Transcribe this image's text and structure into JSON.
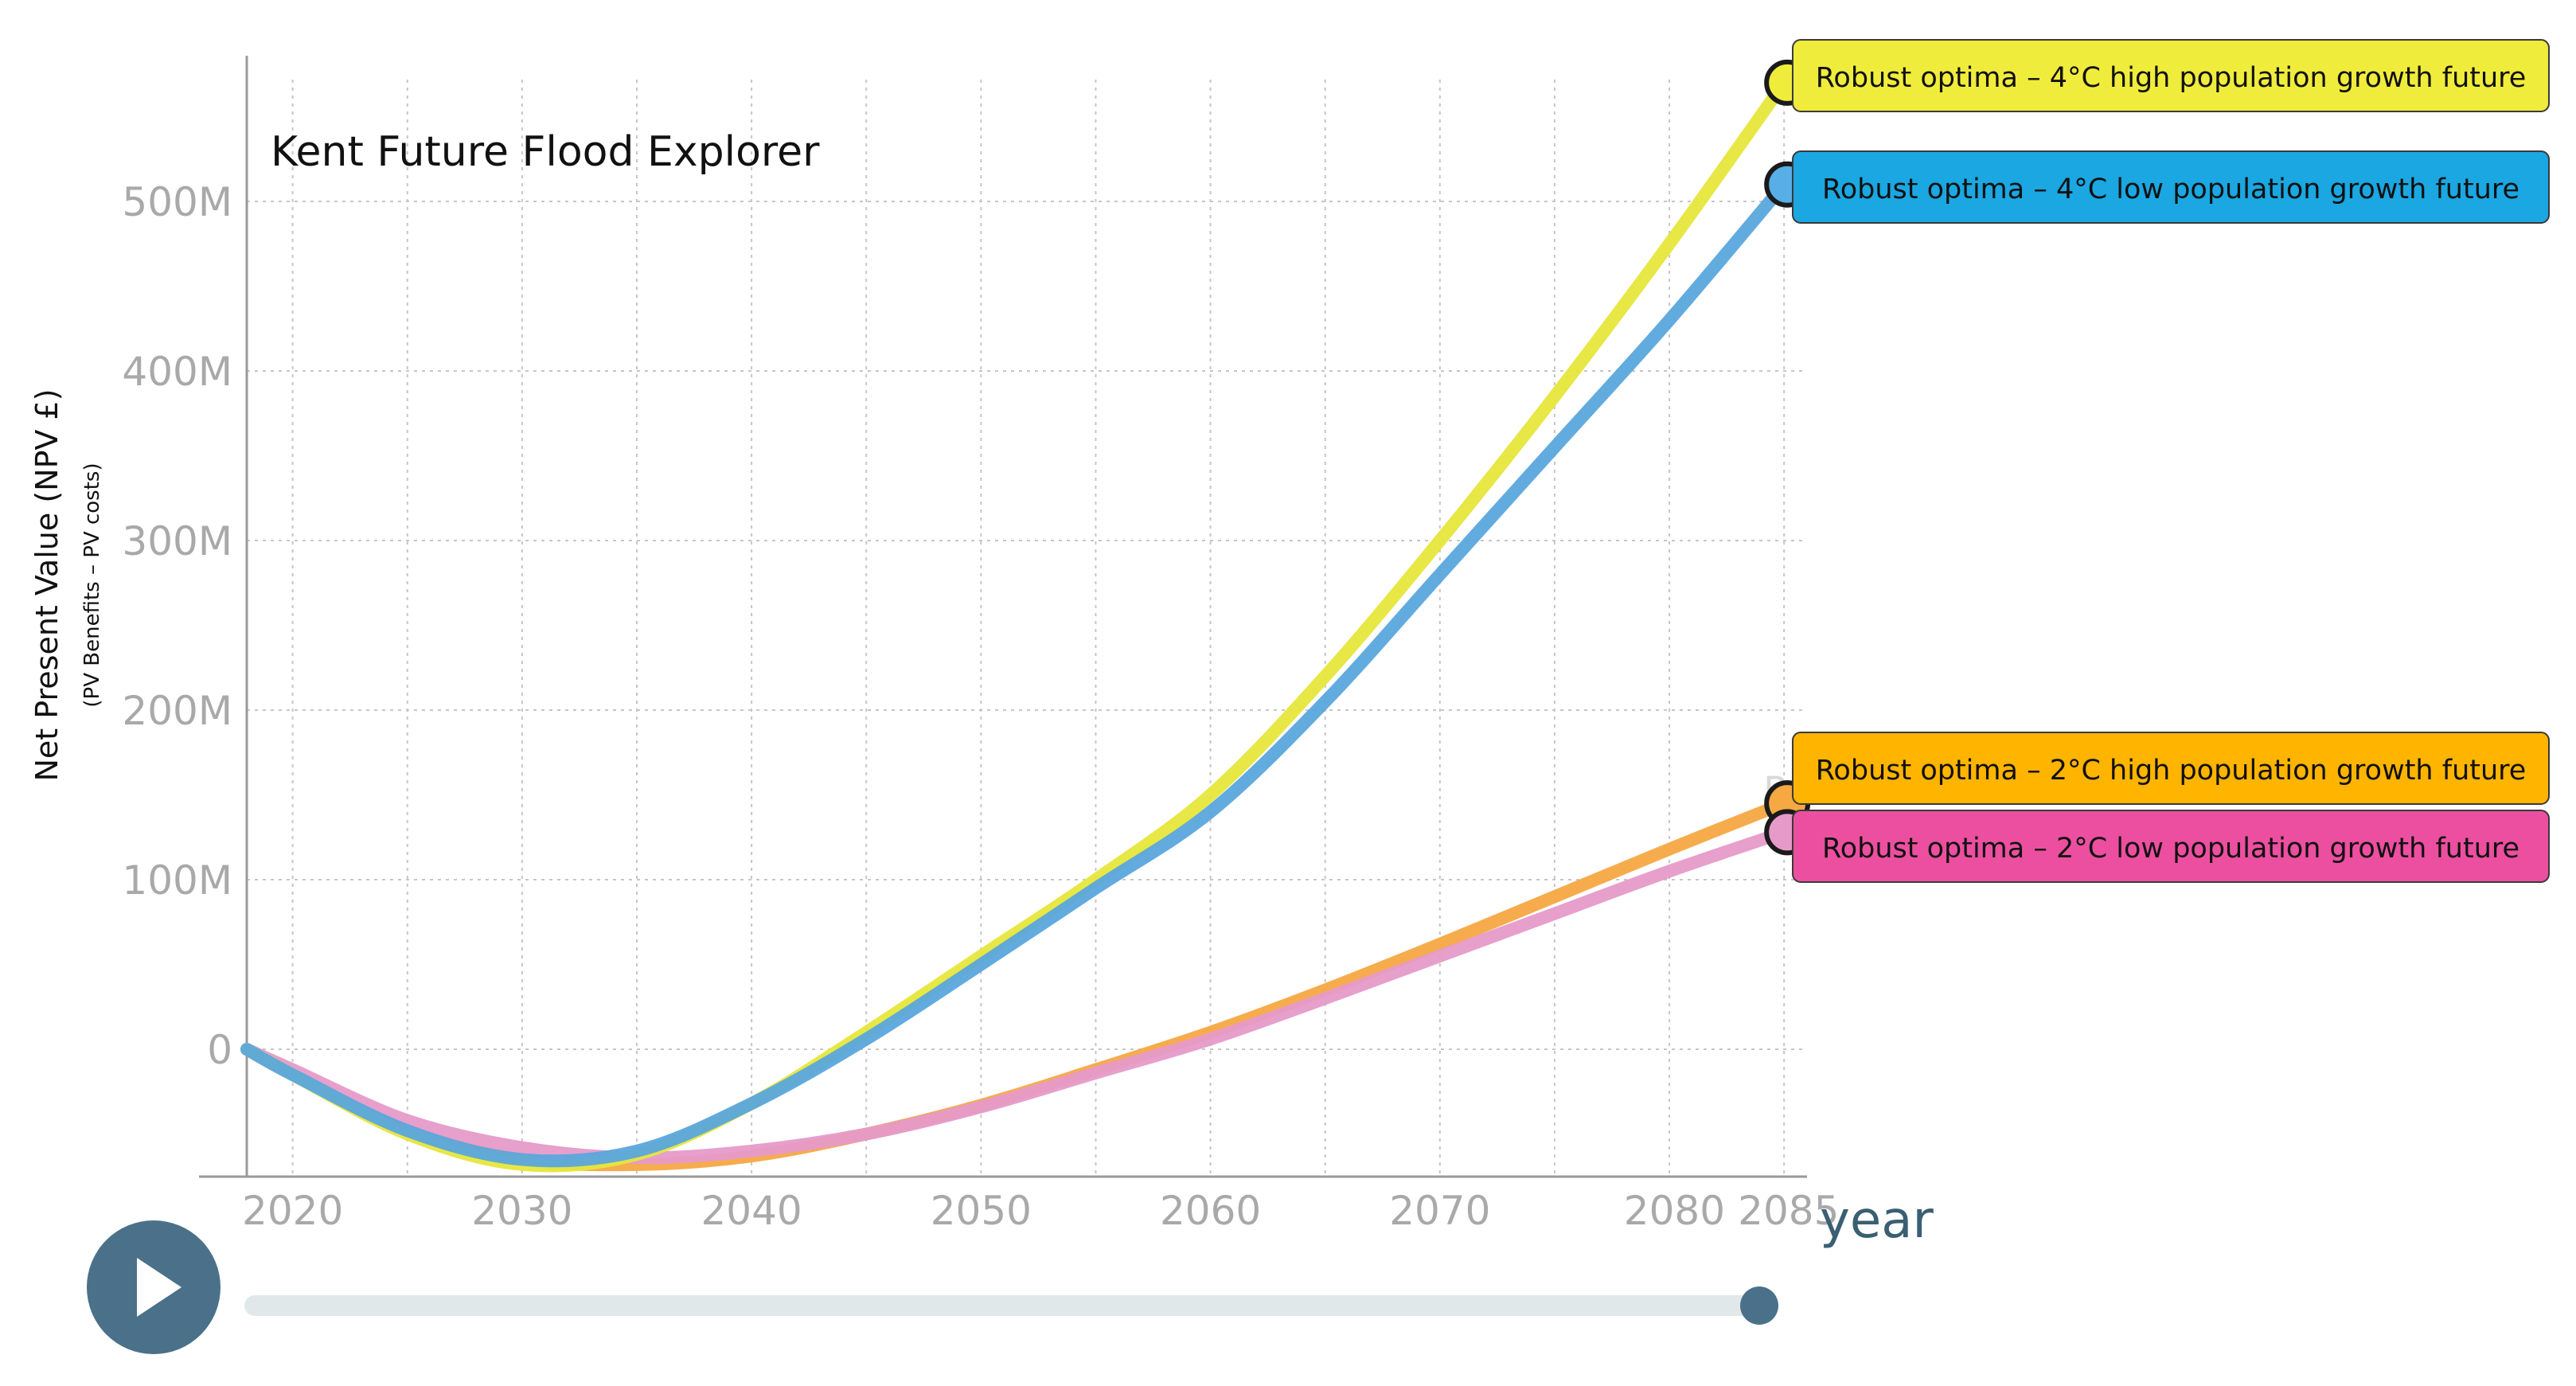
{
  "chart_data": {
    "type": "line",
    "title": "Kent Future Flood Explorer",
    "ylabel": "Net Present Value (NPV £)",
    "ylabel_sub": "(PV Benefits – PV costs)",
    "xlabel": "year",
    "xlim": [
      2018,
      2086
    ],
    "ylim": [
      -78,
      590
    ],
    "x_ticks": [
      {
        "value": 2020,
        "label": "2020"
      },
      {
        "value": 2030,
        "label": "2030"
      },
      {
        "value": 2040,
        "label": "2040"
      },
      {
        "value": 2050,
        "label": "2050"
      },
      {
        "value": 2060,
        "label": "2060"
      },
      {
        "value": 2070,
        "label": "2070"
      },
      {
        "value": 2080,
        "label": "2080"
      },
      {
        "value": 2085,
        "label": "2085"
      }
    ],
    "y_ticks": [
      {
        "value": 0,
        "label": "0"
      },
      {
        "value": 100,
        "label": "100M"
      },
      {
        "value": 200,
        "label": "200M"
      },
      {
        "value": 300,
        "label": "300M"
      },
      {
        "value": 400,
        "label": "400M"
      },
      {
        "value": 500,
        "label": "500M"
      }
    ],
    "x_grid": [
      2018,
      2020,
      2025,
      2030,
      2035,
      2040,
      2045,
      2050,
      2055,
      2060,
      2065,
      2070,
      2075,
      2080,
      2085
    ],
    "y_grid": [
      0,
      100,
      200,
      300,
      400,
      500
    ],
    "grid": true,
    "legend_placement": "right",
    "series": [
      {
        "name": "Robust optima – 4°C high population growth future",
        "color": "#e6e63c",
        "label_bg": "#f0ec3c",
        "marker_fill": "#f0ec3c",
        "x": [
          2018,
          2020,
          2025,
          2030,
          2035,
          2040,
          2045,
          2050,
          2055,
          2060,
          2065,
          2070,
          2075,
          2080,
          2085
        ],
        "y": [
          0,
          -15,
          -50,
          -68,
          -62,
          -32,
          10,
          55,
          100,
          150,
          220,
          300,
          385,
          475,
          570
        ]
      },
      {
        "name": "Robust optima – 4°C low population growth future",
        "color": "#5aa6dd",
        "label_bg": "#1aa7e2",
        "marker_fill": "#58aee6",
        "x": [
          2018,
          2020,
          2025,
          2030,
          2035,
          2040,
          2045,
          2050,
          2055,
          2060,
          2065,
          2070,
          2075,
          2080,
          2085
        ],
        "y": [
          0,
          -15,
          -48,
          -65,
          -60,
          -32,
          6,
          50,
          95,
          140,
          205,
          280,
          355,
          430,
          510
        ]
      },
      {
        "name": "Robust optima – 2°C high population growth future",
        "color": "#f6a843",
        "label_bg": "#ffb400",
        "marker_fill": "#f6a843",
        "x": [
          2018,
          2020,
          2025,
          2030,
          2035,
          2040,
          2045,
          2050,
          2055,
          2060,
          2065,
          2070,
          2075,
          2080,
          2085
        ],
        "y": [
          0,
          -15,
          -48,
          -65,
          -68,
          -63,
          -50,
          -33,
          -12,
          10,
          35,
          62,
          90,
          118,
          145
        ]
      },
      {
        "name": "Robust optima – 2°C low population growth future",
        "color": "#e69ac9",
        "label_bg": "#ec4fa0",
        "marker_fill": "#e69ac9",
        "x": [
          2018,
          2020,
          2025,
          2030,
          2035,
          2040,
          2045,
          2050,
          2055,
          2060,
          2065,
          2070,
          2075,
          2080,
          2085
        ],
        "y": [
          0,
          -12,
          -42,
          -58,
          -64,
          -60,
          -50,
          -34,
          -14,
          6,
          30,
          55,
          80,
          105,
          128
        ]
      }
    ],
    "ghost_text": "Robust"
  },
  "player": {
    "play_icon": "play-icon",
    "progress": 1.0
  },
  "colors": {
    "grid": "#c6c6c6",
    "axis": "#9a9a9a",
    "tick_text": "#a9a9a9",
    "year_label": "#3a5f73",
    "play_button": "#4a7189",
    "slider_track": "#e1e8ea",
    "slider_knob": "#4a7189"
  }
}
